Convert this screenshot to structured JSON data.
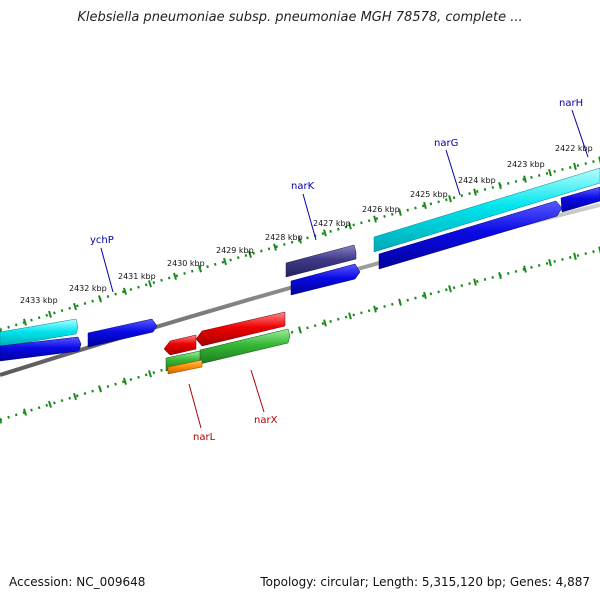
{
  "title": "Klebsiella pneumoniae subsp. pneumoniae MGH 78578, complete ...",
  "footer": {
    "accession": "Accession: NC_009648",
    "topology": "Topology: circular; Length: 5,315,120 bp; Genes: 4,887"
  },
  "colors": {
    "backbone": "#8a8a8a",
    "ticks": "#1a8a1a",
    "label_blue": "#0000aa",
    "label_red": "#b00000"
  },
  "scale": {
    "unit": "kbp",
    "labels": [
      "2433 kbp",
      "2432 kbp",
      "2431 kbp",
      "2430 kbp",
      "2429 kbp",
      "2428 kbp",
      "2427 kbp",
      "2426 kbp",
      "2425 kbp",
      "2424 kbp",
      "2423 kbp",
      "2422 kbp"
    ]
  },
  "genes": [
    {
      "label": "ychP",
      "strand": "top"
    },
    {
      "label": "narK",
      "strand": "top"
    },
    {
      "label": "narG",
      "strand": "top"
    },
    {
      "label": "narH",
      "strand": "top"
    },
    {
      "label": "narL",
      "strand": "bottom"
    },
    {
      "label": "narX",
      "strand": "bottom"
    }
  ]
}
